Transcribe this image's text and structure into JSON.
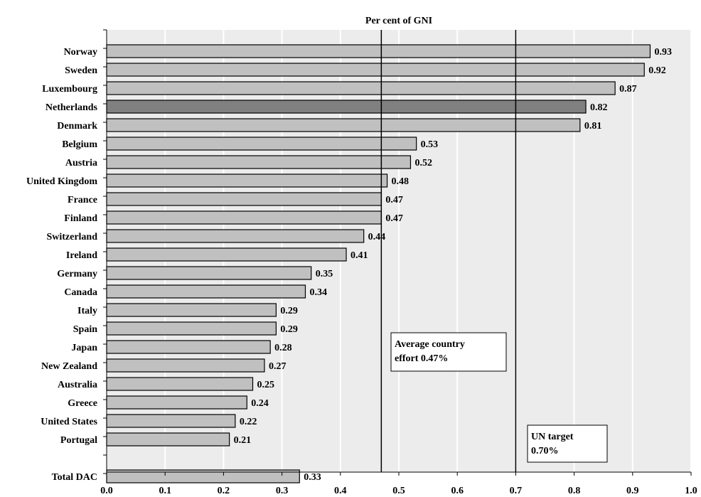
{
  "chart_data": {
    "type": "bar",
    "orientation": "horizontal",
    "title": "Per cent of GNI",
    "categories": [
      "Norway",
      "Sweden",
      "Luxembourg",
      "Netherlands",
      "Denmark",
      "Belgium",
      "Austria",
      "United Kingdom",
      "France",
      "Finland",
      "Switzerland",
      "Ireland",
      "Germany",
      "Canada",
      "Italy",
      "Spain",
      "Japan",
      "New Zealand",
      "Australia",
      "Greece",
      "United States",
      "Portugal",
      "Total DAC"
    ],
    "values": [
      0.93,
      0.92,
      0.87,
      0.82,
      0.81,
      0.53,
      0.52,
      0.48,
      0.47,
      0.47,
      0.44,
      0.41,
      0.35,
      0.34,
      0.29,
      0.29,
      0.28,
      0.27,
      0.25,
      0.24,
      0.22,
      0.21,
      0.33
    ],
    "value_labels": [
      "0.93",
      "0.92",
      "0.87",
      "0.82",
      "0.81",
      "0.53",
      "0.52",
      "0.48",
      "0.47",
      "0.47",
      "0.44",
      "0.41",
      "0.35",
      "0.34",
      "0.29",
      "0.29",
      "0.28",
      "0.27",
      "0.25",
      "0.24",
      "0.22",
      "0.21",
      "0.33"
    ],
    "highlight": "Netherlands",
    "xlim": [
      0,
      1.0
    ],
    "xticks": [
      0.0,
      0.1,
      0.2,
      0.3,
      0.4,
      0.5,
      0.6,
      0.7,
      0.8,
      0.9,
      1.0
    ],
    "xtick_labels": [
      "0.0",
      "0.1",
      "0.2",
      "0.3",
      "0.4",
      "0.5",
      "0.6",
      "0.7",
      "0.8",
      "0.9",
      "1.0"
    ],
    "grid": true,
    "colors": {
      "bar": "#c0c0c0",
      "highlight_bar": "#808080",
      "plot_background": "#ececec",
      "gridline": "#ffffff"
    },
    "reference_lines": [
      {
        "value": 0.47,
        "label_lines": [
          "Average country",
          "effort 0.47%"
        ]
      },
      {
        "value": 0.7,
        "label_lines": [
          "UN target",
          "0.70%"
        ]
      }
    ]
  }
}
